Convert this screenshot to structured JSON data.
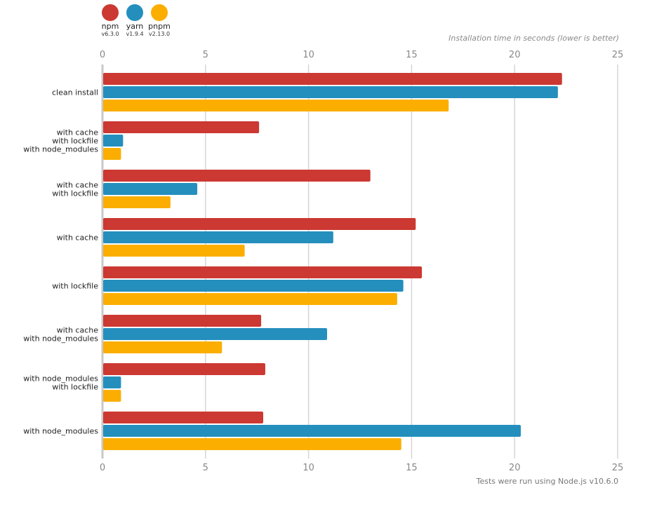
{
  "legend": [
    {
      "name": "npm",
      "version": "v6.3.0",
      "color": "#cc3832"
    },
    {
      "name": "yarn",
      "version": "v1.9.4",
      "color": "#248fbd"
    },
    {
      "name": "pnpm",
      "version": "v2.13.0",
      "color": "#fbae00"
    }
  ],
  "axis_title": "Installation time in seconds (lower is better)",
  "footnote": "Tests were run using Node.js v10.6.0",
  "chart_data": {
    "type": "bar",
    "orientation": "horizontal",
    "title": "",
    "xlabel": "Installation time in seconds (lower is better)",
    "ylabel": "",
    "xlim": [
      0,
      25
    ],
    "xticks": [
      0,
      5,
      10,
      15,
      20,
      25
    ],
    "grid": true,
    "legend_position": "top-left",
    "categories": [
      [
        "clean install"
      ],
      [
        "with cache",
        "with lockfile",
        "with node_modules"
      ],
      [
        "with cache",
        "with lockfile"
      ],
      [
        "with cache"
      ],
      [
        "with lockfile"
      ],
      [
        "with cache",
        "with node_modules"
      ],
      [
        "with node_modules",
        "with lockfile"
      ],
      [
        "with node_modules"
      ]
    ],
    "series": [
      {
        "name": "npm",
        "color": "#cc3832",
        "values": [
          22.3,
          7.6,
          13.0,
          15.2,
          15.5,
          7.7,
          7.9,
          7.8
        ]
      },
      {
        "name": "yarn",
        "color": "#248fbd",
        "values": [
          22.1,
          1.0,
          4.6,
          11.2,
          14.6,
          10.9,
          0.9,
          20.3
        ]
      },
      {
        "name": "pnpm",
        "color": "#fbae00",
        "values": [
          16.8,
          0.9,
          3.3,
          6.9,
          14.3,
          5.8,
          0.9,
          14.5
        ]
      }
    ]
  }
}
